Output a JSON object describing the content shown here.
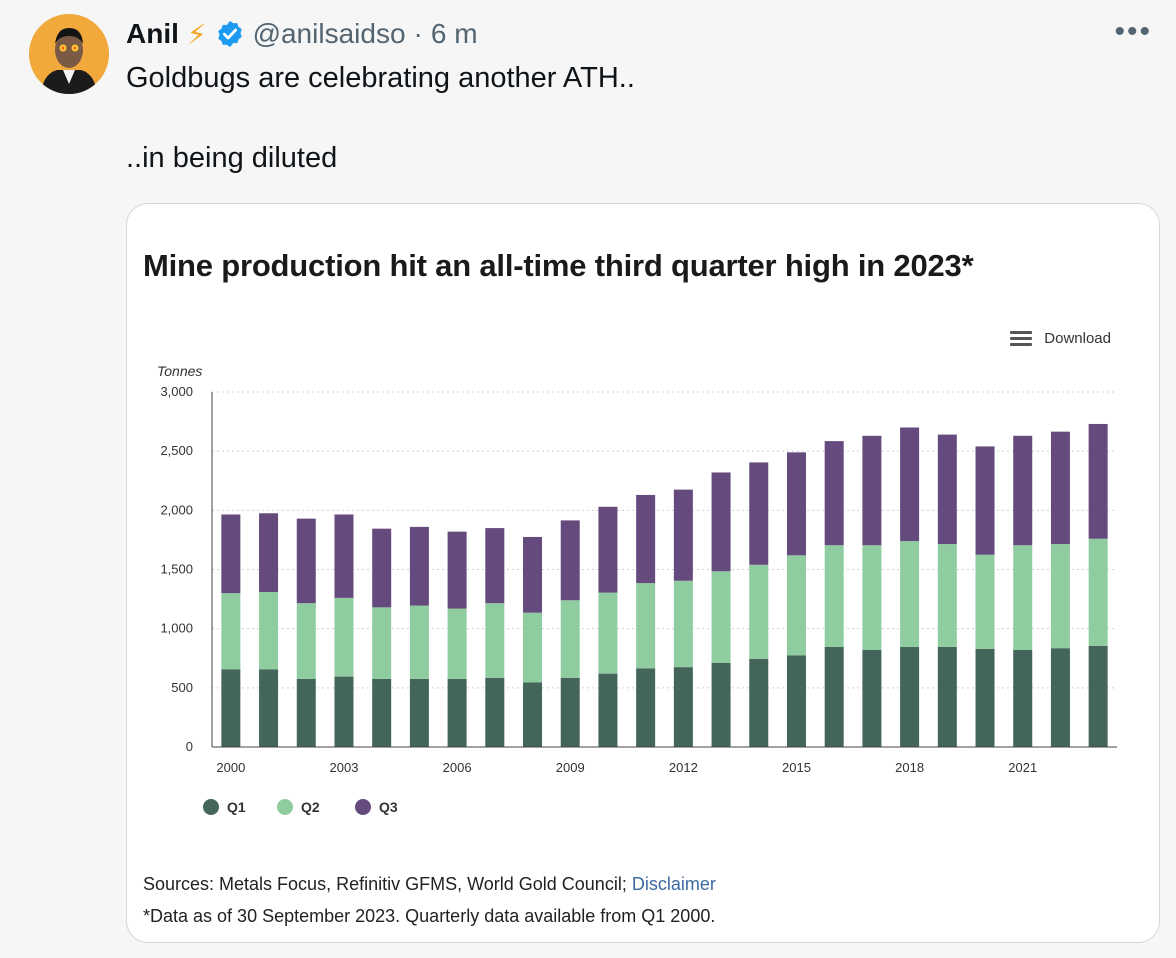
{
  "tweet": {
    "author_name": "Anil",
    "lightning": "⚡",
    "handle": "@anilsaidso",
    "separator": "·",
    "time": "6 m",
    "more": "•••",
    "text": "Goldbugs are celebrating another ATH..\n\n..in being diluted"
  },
  "colors": {
    "q1": "#43655a",
    "q2": "#8fcc9f",
    "q3": "#654a7e",
    "verified": "#1d9bf0",
    "lightning": "#f5a623"
  },
  "card": {
    "download_label": "Download",
    "sources_prefix": "Sources: Metals Focus, Refinitiv GFMS, World Gold Council; ",
    "disclaimer_link": "Disclaimer",
    "footnote": "*Data as of 30 September 2023. Quarterly data available from Q1 2000."
  },
  "chart_data": {
    "type": "bar",
    "stacked": true,
    "title": "Mine production hit an all-time third quarter high in 2023*",
    "ylabel": "Tonnes",
    "ylim": [
      0,
      3000
    ],
    "yticks": [
      0,
      500,
      1000,
      1500,
      2000,
      2500,
      3000
    ],
    "ytick_labels": [
      "0",
      "500",
      "1,000",
      "1,500",
      "2,000",
      "2,500",
      "3,000"
    ],
    "categories": [
      "2000",
      "2001",
      "2002",
      "2003",
      "2004",
      "2005",
      "2006",
      "2007",
      "2008",
      "2009",
      "2010",
      "2011",
      "2012",
      "2013",
      "2014",
      "2015",
      "2016",
      "2017",
      "2018",
      "2019",
      "2020",
      "2021",
      "2022",
      "2023"
    ],
    "xtick_labels": [
      "2000",
      "2003",
      "2006",
      "2009",
      "2012",
      "2015",
      "2018",
      "2021"
    ],
    "grid": true,
    "legend_position": "bottom-left",
    "series": [
      {
        "name": "Q1",
        "values": [
          655,
          655,
          575,
          595,
          575,
          575,
          575,
          585,
          545,
          585,
          620,
          665,
          675,
          710,
          745,
          775,
          845,
          820,
          845,
          845,
          830,
          820,
          835,
          855
        ]
      },
      {
        "name": "Q2",
        "values": [
          645,
          655,
          640,
          665,
          605,
          620,
          595,
          630,
          590,
          655,
          685,
          720,
          730,
          775,
          795,
          845,
          860,
          885,
          895,
          870,
          795,
          885,
          880,
          905
        ]
      },
      {
        "name": "Q3",
        "values": [
          665,
          665,
          715,
          705,
          665,
          665,
          650,
          635,
          640,
          675,
          725,
          745,
          770,
          835,
          865,
          870,
          880,
          925,
          960,
          925,
          915,
          925,
          950,
          970
        ]
      }
    ]
  }
}
